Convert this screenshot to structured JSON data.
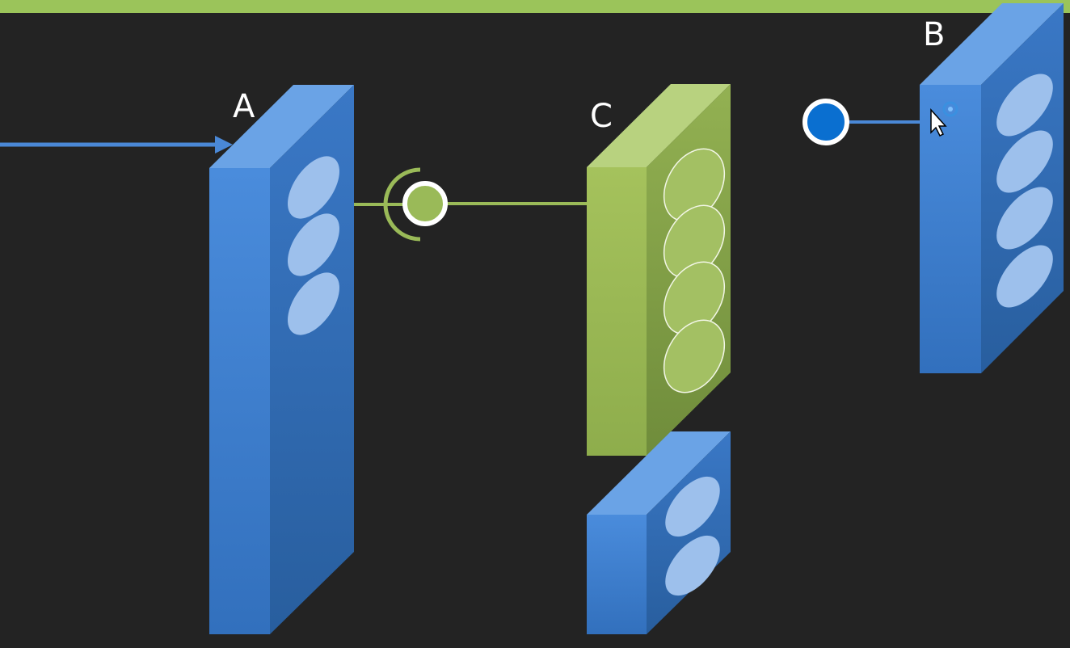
{
  "colors": {
    "background": "#232323",
    "top_banner": "#9bc45a",
    "blue": "#3d7fcf",
    "green": "#9aba58",
    "blue_connector": "#0a6fd0"
  },
  "blocks": {
    "a": {
      "label": "A",
      "slots": 3
    },
    "b": {
      "label": "B",
      "slots": 4
    },
    "c": {
      "label": "C",
      "slots": 4
    },
    "d": {
      "label": "",
      "slots": 2
    }
  },
  "icons": {
    "cursor": "mouse-pointer-icon",
    "busy": "busy-spinner-icon"
  }
}
